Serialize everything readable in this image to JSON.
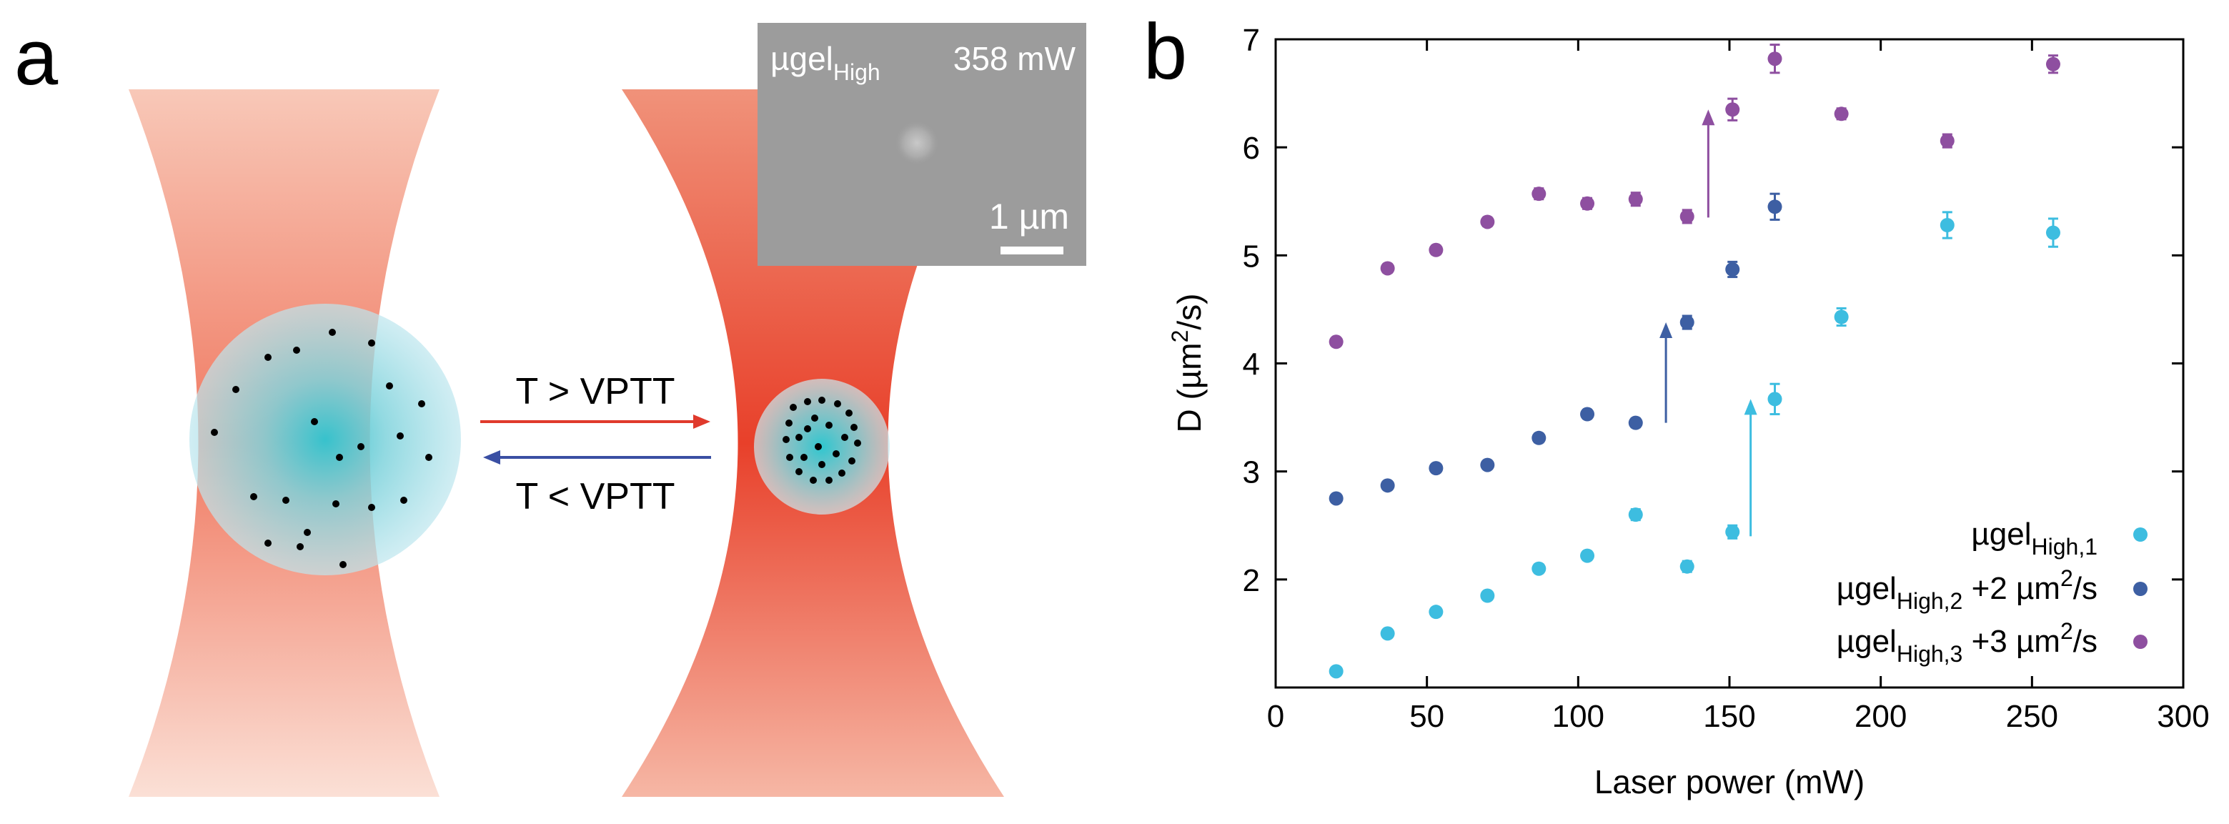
{
  "panel_a": {
    "label": "a",
    "inset": {
      "name": "µgel",
      "subscript": "High",
      "power": "358 mW",
      "scalebar": "1 µm"
    },
    "arrow_forward": "T > VPTT",
    "arrow_back": "T < VPTT"
  },
  "panel_b": {
    "label": "b"
  },
  "colors": {
    "cyan": "#3dbde0",
    "blue": "#3d5fa3",
    "purple": "#8e4fa0",
    "laser": "#e8402a"
  },
  "chart_data": {
    "type": "scatter",
    "xlabel": "Laser power (mW)",
    "ylabel": "D (µm²/s)",
    "ylabel_base": "D (µm",
    "ylabel_sup": "2",
    "ylabel_tail": "/s)",
    "xlim": [
      0,
      300
    ],
    "ylim": [
      1,
      7
    ],
    "xticks": [
      0,
      50,
      100,
      150,
      200,
      250,
      300
    ],
    "yticks": [
      2,
      3,
      4,
      5,
      6,
      7
    ],
    "legend_position": "bottom-right",
    "series": [
      {
        "name": "µgel High,1",
        "label_base": "µgel",
        "label_sub": "High,1",
        "label_suffix": "",
        "label_sup": "",
        "label_tail": "",
        "color": "#3dbde0",
        "x": [
          20,
          37,
          53,
          70,
          87,
          103,
          119,
          136,
          151,
          165,
          187,
          222,
          257
        ],
        "y": [
          1.15,
          1.5,
          1.7,
          1.85,
          2.1,
          2.22,
          2.6,
          2.12,
          2.44,
          3.67,
          4.43,
          5.28,
          5.21
        ],
        "err": [
          0.03,
          0.03,
          0.03,
          0.03,
          0.04,
          0.04,
          0.05,
          0.05,
          0.06,
          0.14,
          0.08,
          0.12,
          0.13
        ]
      },
      {
        "name": "µgel High,2 +2 µm²/s",
        "label_base": "µgel",
        "label_sub": "High,2",
        "label_suffix": " +2 µm",
        "label_sup": "2",
        "label_tail": "/s",
        "color": "#3d5fa3",
        "x": [
          20,
          37,
          53,
          70,
          87,
          103,
          119,
          136,
          151,
          165
        ],
        "y": [
          2.75,
          2.87,
          3.03,
          3.06,
          3.31,
          3.53,
          3.45,
          4.38,
          4.87,
          5.45
        ],
        "err": [
          0.03,
          0.03,
          0.03,
          0.03,
          0.04,
          0.04,
          0.04,
          0.06,
          0.07,
          0.12
        ]
      },
      {
        "name": "µgel High,3 +3 µm²/s",
        "label_base": "µgel",
        "label_sub": "High,3",
        "label_suffix": " +3 µm",
        "label_sup": "2",
        "label_tail": "/s",
        "color": "#8e4fa0",
        "x": [
          20,
          37,
          53,
          70,
          87,
          103,
          119,
          136,
          151,
          165,
          187,
          222,
          257
        ],
        "y": [
          4.2,
          4.88,
          5.05,
          5.31,
          5.57,
          5.48,
          5.52,
          5.36,
          6.35,
          6.82,
          6.31,
          6.06,
          6.77
        ],
        "err": [
          0.03,
          0.04,
          0.04,
          0.04,
          0.05,
          0.05,
          0.06,
          0.06,
          0.1,
          0.13,
          0.05,
          0.06,
          0.08
        ]
      }
    ],
    "arrows": [
      {
        "color": "#8e4fa0",
        "x": 143,
        "y_from": 5.35,
        "y_to": 6.35
      },
      {
        "color": "#3d5fa3",
        "x": 129,
        "y_from": 3.45,
        "y_to": 4.38
      },
      {
        "color": "#3dbde0",
        "x": 157,
        "y_from": 2.4,
        "y_to": 3.67
      }
    ]
  }
}
